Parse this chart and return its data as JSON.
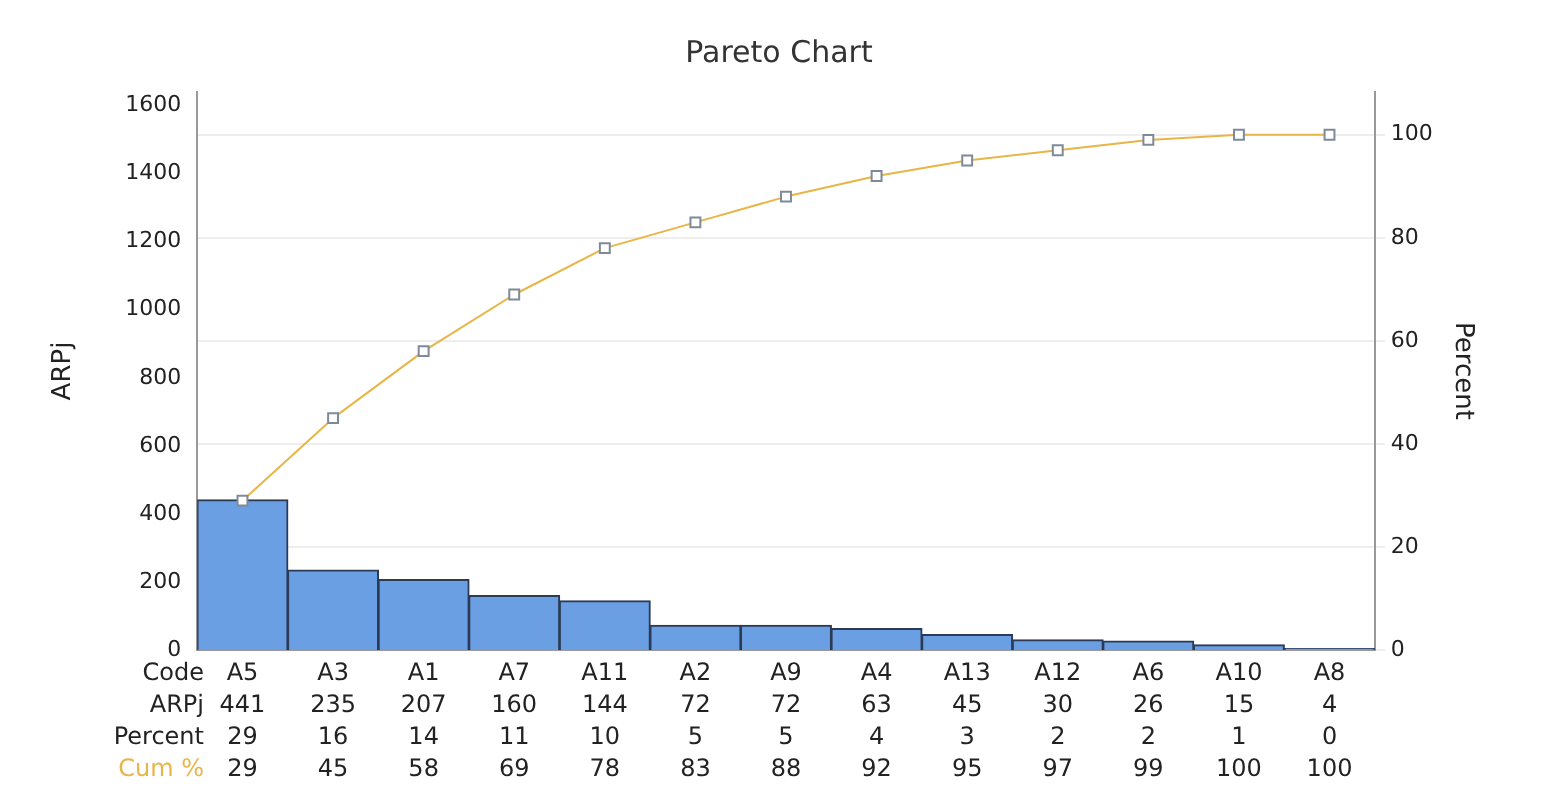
{
  "chart_data": {
    "type": "bar",
    "title": "Pareto Chart",
    "xlabel": "Code",
    "ylabel": "ARPj",
    "y2label": "Percent",
    "categories": [
      "A5",
      "A3",
      "A1",
      "A7",
      "A11",
      "A2",
      "A9",
      "A4",
      "A13",
      "A12",
      "A6",
      "A10",
      "A8"
    ],
    "series": [
      {
        "name": "ARPj",
        "color": "#6b9fe3",
        "values": [
          441,
          235,
          207,
          160,
          144,
          72,
          72,
          63,
          45,
          30,
          26,
          15,
          4
        ]
      },
      {
        "name": "Cum %",
        "type": "line",
        "axis": "y2",
        "color": "#e8b547",
        "values": [
          29,
          45,
          58,
          69,
          78,
          83,
          88,
          92,
          95,
          97,
          99,
          100,
          100
        ]
      }
    ],
    "annotations": [
      "Percent",
      "29",
      "16",
      "14",
      "11",
      "10",
      "5",
      "5",
      "4",
      "3",
      "2",
      "2",
      "1",
      "0"
    ],
    "ylim": [
      0,
      1640
    ],
    "yticks": [
      0,
      200,
      400,
      600,
      800,
      1000,
      1200,
      1400,
      1600
    ],
    "y2lim": [
      0,
      108.3
    ],
    "y2ticks": [
      0,
      20,
      40,
      60,
      80,
      100
    ],
    "grid": "y",
    "legend": false,
    "marker": "square",
    "data_labels": true
  }
}
